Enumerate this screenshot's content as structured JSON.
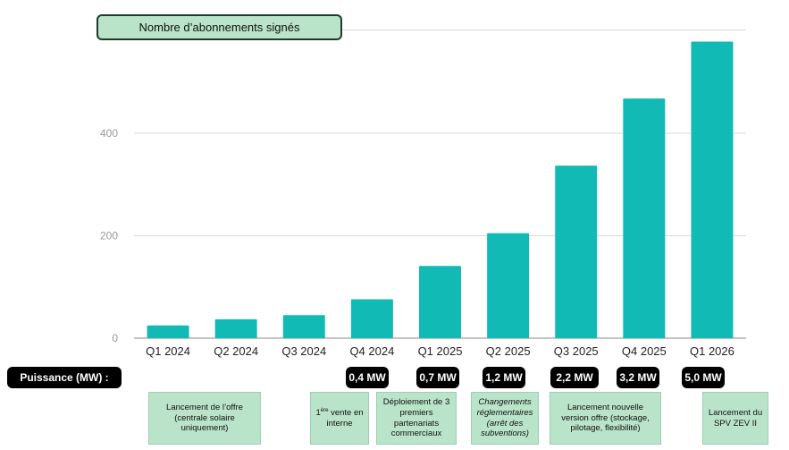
{
  "chart_data": {
    "type": "bar",
    "title": "Nombre d’abonnements signés",
    "categories": [
      "Q1 2024",
      "Q2 2024",
      "Q3 2024",
      "Q4 2024",
      "Q1 2025",
      "Q2 2025",
      "Q3 2025",
      "Q4 2025",
      "Q1 2026"
    ],
    "values": [
      25,
      37,
      45,
      76,
      141,
      205,
      337,
      468,
      579
    ],
    "yticks": [
      0,
      200,
      400
    ],
    "ylim": [
      0,
      600
    ],
    "grid": true,
    "bar_color": "#12bab5"
  },
  "power": {
    "label": "Puissance (MW) :",
    "badges": [
      {
        "quarter": "Q4 2024",
        "text": "0,4 MW"
      },
      {
        "quarter": "Q1 2025",
        "text": "0,7 MW"
      },
      {
        "quarter": "Q2 2025",
        "text": "1,2 MW"
      },
      {
        "quarter": "Q3 2025",
        "text": "2,2  MW"
      },
      {
        "quarter": "Q4 2025",
        "text": "3,2 MW"
      },
      {
        "quarter": "Q1 2026",
        "text": "5,0 MW"
      }
    ]
  },
  "events": {
    "offer_launch": "Lancement de l’offre (centrale solaire uniquement)",
    "first_sale_sup": "ère",
    "first_sale_pre": "1",
    "first_sale_post": " vente en interne",
    "partners": "Déploiement de 3 premiers partenariats commerciaux",
    "regulation": "Changements réglementaires (arrêt des subventions)",
    "new_offer": "Lancement nouvelle version offre (stockage, pilotage, flexibilité)",
    "spv": "Lancement du SPV ZEV II"
  },
  "colors": {
    "bar": "#12bab5",
    "box_green": "#b9e4c9",
    "badge": "#000000"
  }
}
